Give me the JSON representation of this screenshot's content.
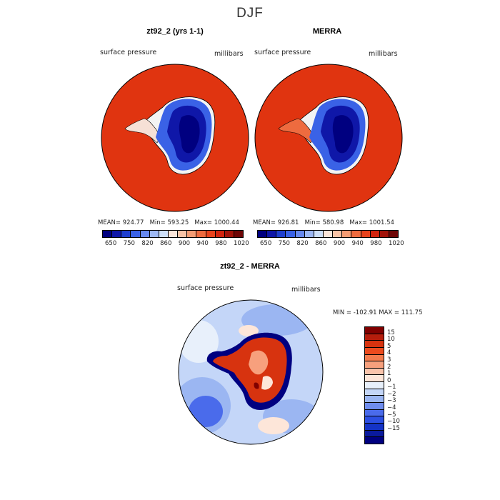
{
  "figure_title": "DJF",
  "chart_data": [
    {
      "type": "heatmap",
      "title": "zt92_2 (yrs 1-1)",
      "subtitle_left": "surface pressure",
      "subtitle_right": "millibars",
      "stats": {
        "mean_label": "MEAN=",
        "mean": "924.77",
        "min_label": "Min=",
        "min": "593.25",
        "max_label": "Max=",
        "max": "1000.44"
      },
      "colorbar": {
        "colors": [
          "#000080",
          "#0f17a8",
          "#1f3fcf",
          "#3a62e6",
          "#6789ee",
          "#9db8f4",
          "#cddff9",
          "#fbe5d9",
          "#f8c3a6",
          "#f39c74",
          "#ee6b3f",
          "#e8431d",
          "#d1240f",
          "#a2130a",
          "#6e0606"
        ],
        "tick_labels": [
          "650",
          "750",
          "820",
          "860",
          "900",
          "940",
          "980",
          "1020"
        ]
      }
    },
    {
      "type": "heatmap",
      "title": "MERRA",
      "subtitle_left": "surface pressure",
      "subtitle_right": "millibars",
      "stats": {
        "mean_label": "MEAN=",
        "mean": "926.81",
        "min_label": "Min=",
        "min": "580.98",
        "max_label": "Max=",
        "max": "1001.54"
      },
      "colorbar": {
        "colors": [
          "#000080",
          "#0f17a8",
          "#1f3fcf",
          "#3a62e6",
          "#6789ee",
          "#9db8f4",
          "#cddff9",
          "#fbe5d9",
          "#f8c3a6",
          "#f39c74",
          "#ee6b3f",
          "#e8431d",
          "#d1240f",
          "#a2130a",
          "#6e0606"
        ],
        "tick_labels": [
          "650",
          "750",
          "820",
          "860",
          "900",
          "940",
          "980",
          "1020"
        ]
      }
    },
    {
      "type": "heatmap",
      "title": "zt92_2 - MERRA",
      "subtitle_left": "surface pressure",
      "subtitle_right": "millibars",
      "stats": {
        "min_label": "MIN =",
        "min": "-102.91",
        "max_label": "MAX =",
        "max": "111.75"
      },
      "colorbar": {
        "colors": [
          "#800000",
          "#b51d0c",
          "#d7330f",
          "#ec4b1e",
          "#f37b4d",
          "#f7a07d",
          "#fac4ab",
          "#fde6d9",
          "#e8f0fb",
          "#c4d6f8",
          "#9bb6f2",
          "#6f8def",
          "#4a6beb",
          "#2c4fe3",
          "#1433c7",
          "#0a1a9e",
          "#000080"
        ],
        "tick_labels": [
          "15",
          "10",
          "5",
          "4",
          "3",
          "2",
          "1",
          "0",
          "−1",
          "−2",
          "−3",
          "−4",
          "−5",
          "−10",
          "−15"
        ]
      }
    }
  ]
}
